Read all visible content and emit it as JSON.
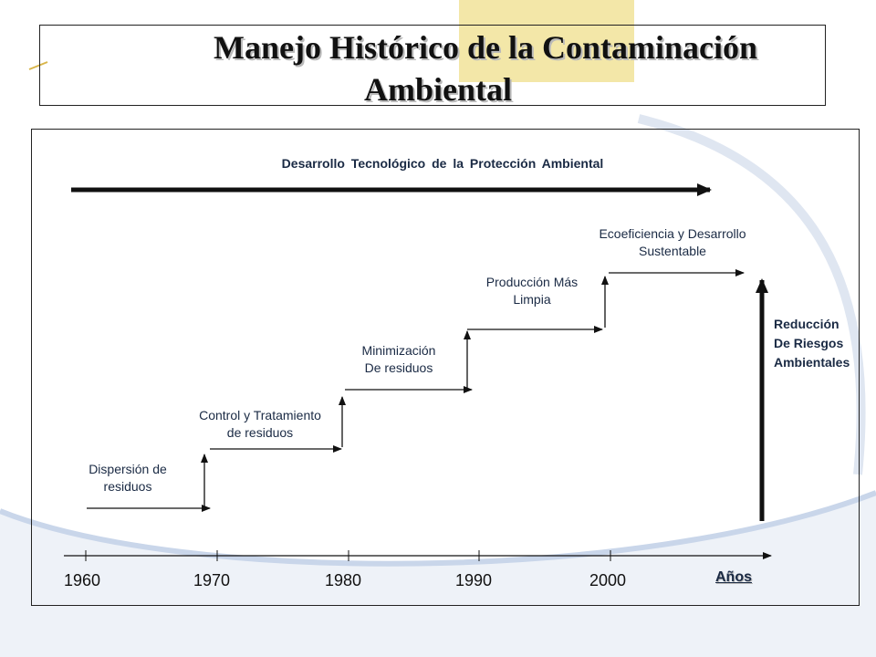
{
  "title": {
    "line1": "Manejo Histórico de la Contaminación",
    "line2": "Ambiental"
  },
  "top_arrow_label": "Desarrollo Tecnológico de la Protección Ambiental",
  "stages": [
    {
      "line1": "Dispersión de",
      "line2": "residuos"
    },
    {
      "line1": "Control y Tratamiento",
      "line2": "de residuos"
    },
    {
      "line1": "Minimización",
      "line2": "De residuos"
    },
    {
      "line1": "Producción Más",
      "line2": "Limpia"
    },
    {
      "line1": "Ecoeficiencia y Desarrollo",
      "line2": "Sustentable"
    }
  ],
  "right_label": {
    "line1": "Reducción",
    "line2": "De Riesgos",
    "line3": "Ambientales"
  },
  "years": [
    "1960",
    "1970",
    "1980",
    "1990",
    "2000"
  ],
  "axis_label": "Años",
  "colors": {
    "accent_yellow": "#f3e7a8",
    "swoosh_blue": "#c9d6ea",
    "text_dark": "#1a2a44"
  }
}
